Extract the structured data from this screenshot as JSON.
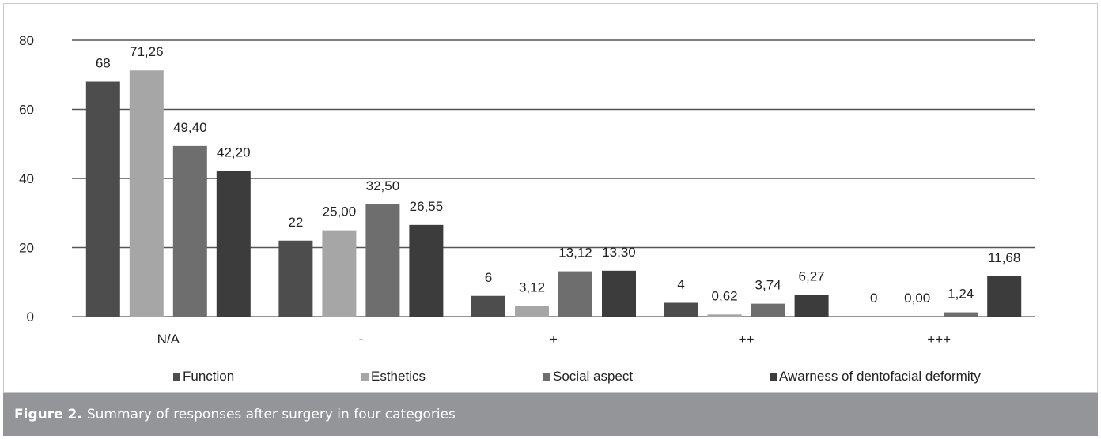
{
  "chart_data": {
    "type": "bar",
    "categories": [
      "N/A",
      "-",
      "+",
      "++",
      "+++"
    ],
    "series": [
      {
        "name": "Function",
        "values": [
          68,
          22,
          6,
          4,
          0
        ],
        "labels": [
          "68",
          "22",
          "6",
          "4",
          "0"
        ],
        "color": "#4d4d4d"
      },
      {
        "name": "Esthetics",
        "values": [
          71.26,
          25.0,
          3.12,
          0.62,
          0.0
        ],
        "labels": [
          "71,26",
          "25,00",
          "3,12",
          "0,62",
          "0,00"
        ],
        "color": "#a6a6a6"
      },
      {
        "name": "Social aspect",
        "values": [
          49.4,
          32.5,
          13.12,
          3.74,
          1.24
        ],
        "labels": [
          "49,40",
          "32,50",
          "13,12",
          "3,74",
          "1,24"
        ],
        "color": "#6e6e6e"
      },
      {
        "name": "Awarness of dentofacial deformity",
        "values": [
          42.2,
          26.55,
          13.3,
          6.27,
          11.68
        ],
        "labels": [
          "42,20",
          "26,55",
          "13,30",
          "6,27",
          "11,68"
        ],
        "color": "#3c3c3c"
      }
    ],
    "yticks": [
      "0",
      "20",
      "40",
      "60",
      "80"
    ],
    "ylim": [
      0,
      80
    ],
    "grid": true,
    "legend_position": "bottom"
  },
  "caption": {
    "label": "Figure 2.",
    "text": "Summary of responses after surgery in four categories"
  },
  "colors": {
    "caption_bg": "#939598",
    "gridline": "#555555"
  }
}
